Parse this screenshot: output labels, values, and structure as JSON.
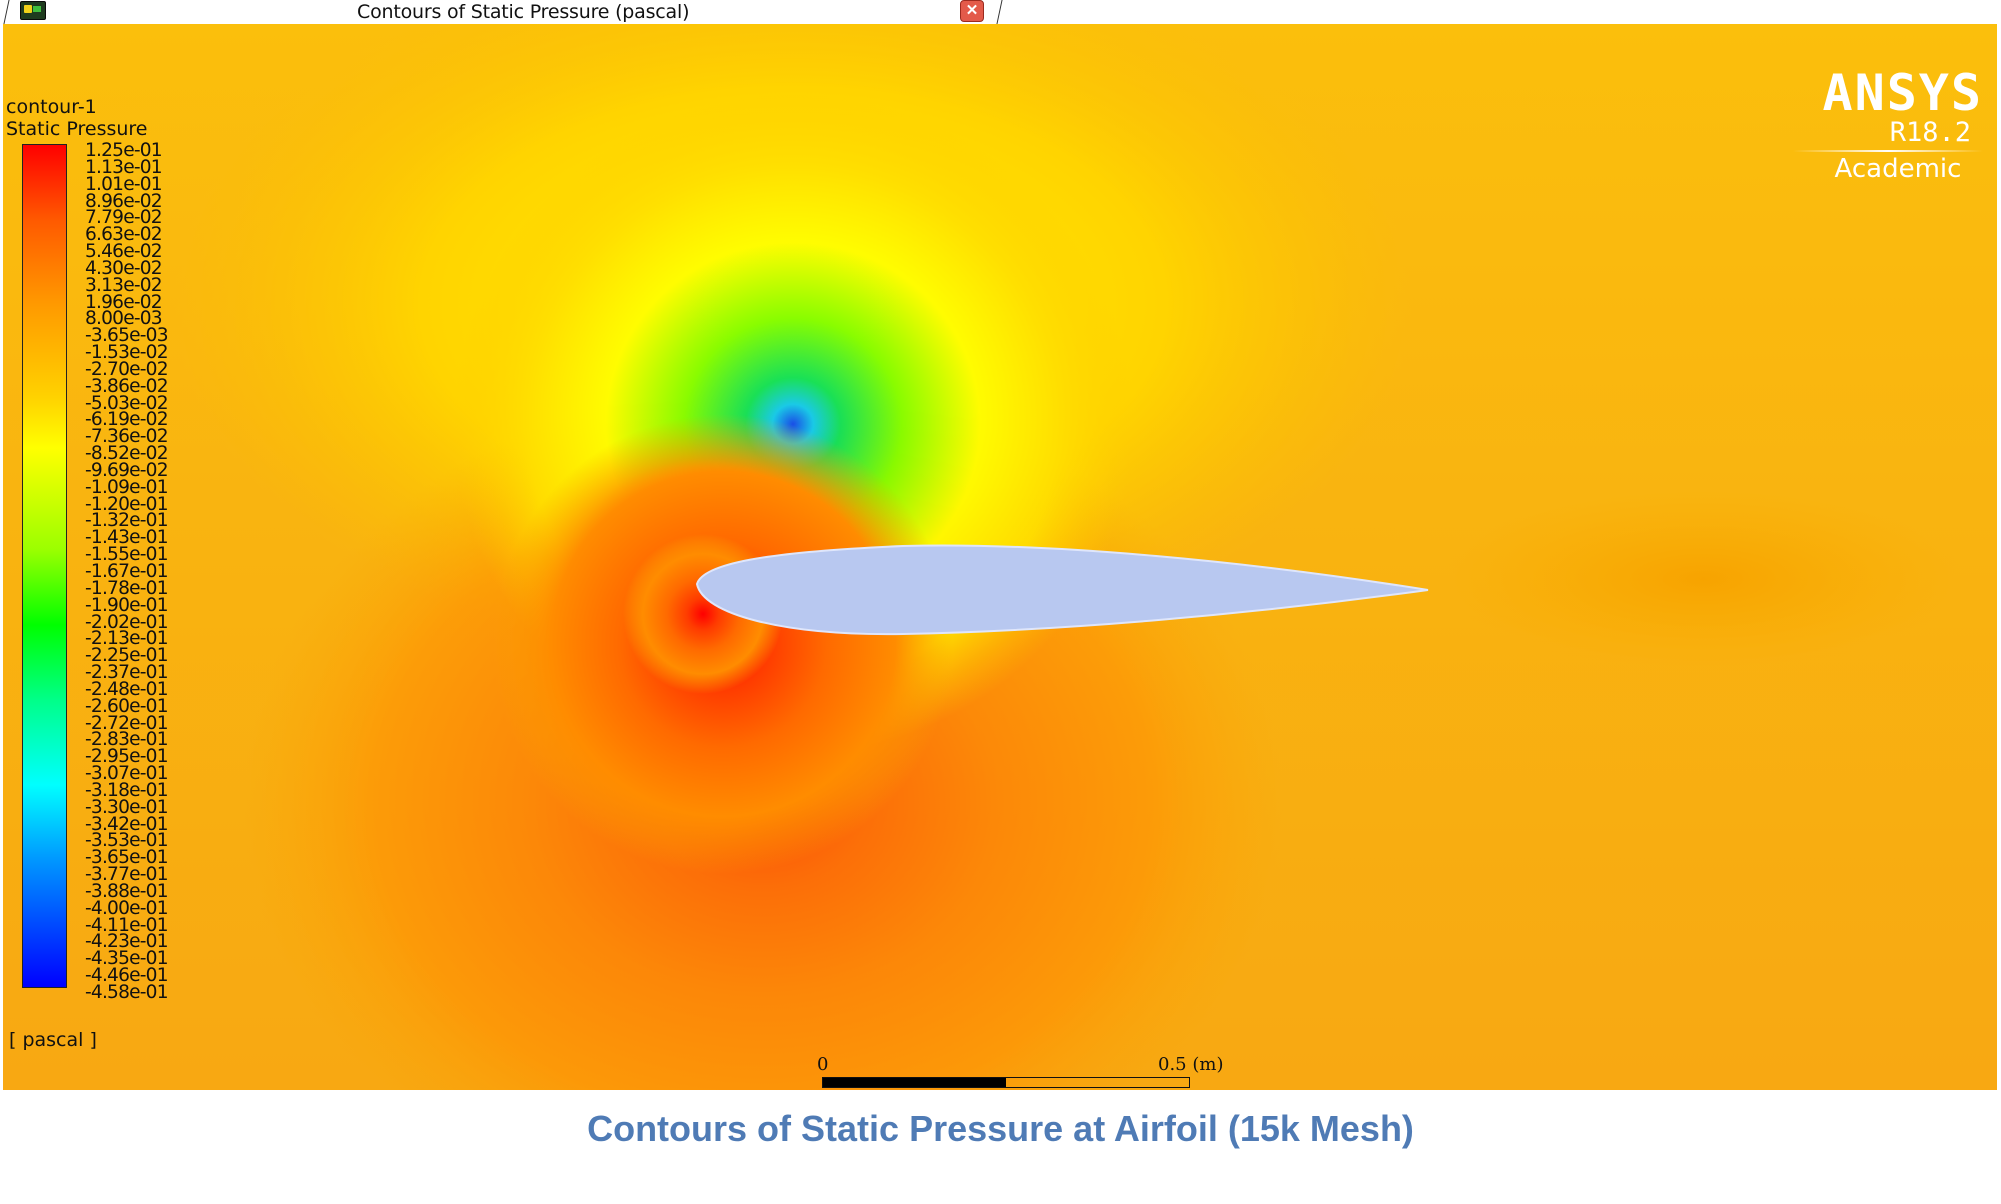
{
  "window": {
    "title": "Contours of Static Pressure (pascal)",
    "close_icon": "close-icon",
    "app_icon": "graphics-window-icon"
  },
  "legend": {
    "contour_name": "contour-1",
    "variable": "Static Pressure",
    "unit": "[ pascal ]",
    "ticks": [
      "1.25e-01",
      "1.13e-01",
      "1.01e-01",
      "8.96e-02",
      "7.79e-02",
      "6.63e-02",
      "5.46e-02",
      "4.30e-02",
      "3.13e-02",
      "1.96e-02",
      "8.00e-03",
      "-3.65e-03",
      "-1.53e-02",
      "-2.70e-02",
      "-3.86e-02",
      "-5.03e-02",
      "-6.19e-02",
      "-7.36e-02",
      "-8.52e-02",
      "-9.69e-02",
      "-1.09e-01",
      "-1.20e-01",
      "-1.32e-01",
      "-1.43e-01",
      "-1.55e-01",
      "-1.67e-01",
      "-1.78e-01",
      "-1.90e-01",
      "-2.02e-01",
      "-2.13e-01",
      "-2.25e-01",
      "-2.37e-01",
      "-2.48e-01",
      "-2.60e-01",
      "-2.72e-01",
      "-2.83e-01",
      "-2.95e-01",
      "-3.07e-01",
      "-3.18e-01",
      "-3.30e-01",
      "-3.42e-01",
      "-3.53e-01",
      "-3.65e-01",
      "-3.77e-01",
      "-3.88e-01",
      "-4.00e-01",
      "-4.11e-01",
      "-4.23e-01",
      "-4.35e-01",
      "-4.46e-01",
      "-4.58e-01"
    ],
    "colormap": [
      "#ff0000",
      "#ff9a00",
      "#ffff00",
      "#00ff00",
      "#00ffff",
      "#0000ff"
    ]
  },
  "logo": {
    "brand": "ANSYS",
    "version": "R18.2",
    "edition": "Academic"
  },
  "scale_bar": {
    "start_label": "0",
    "end_label": "0.5 (m)"
  },
  "caption": "Contours of Static Pressure at Airfoil (15k Mesh)"
}
